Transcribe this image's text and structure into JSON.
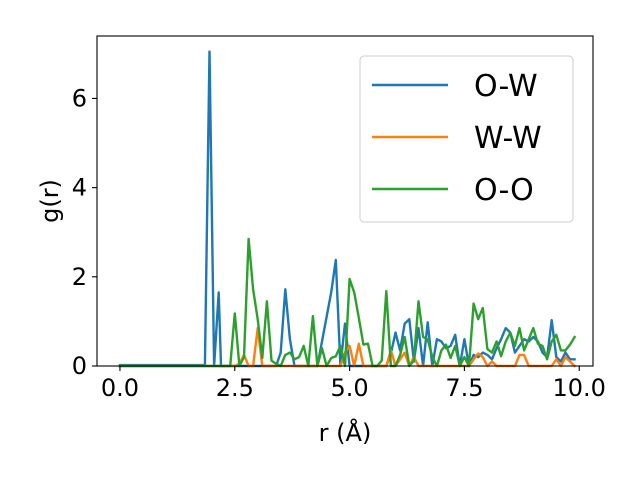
{
  "chart_data": {
    "type": "line",
    "xlabel": "r (Å)",
    "ylabel": "g(r)",
    "xlim": [
      -0.5,
      10.3
    ],
    "ylim": [
      0,
      7.4
    ],
    "xticks": [
      0.0,
      2.5,
      5.0,
      7.5,
      10.0
    ],
    "xtick_labels": [
      "0.0",
      "2.5",
      "5.0",
      "7.5",
      "10.0"
    ],
    "yticks": [
      0,
      2,
      4,
      6
    ],
    "ytick_labels": [
      "0",
      "2",
      "4",
      "6"
    ],
    "grid": false,
    "legend_position": "top-right",
    "series": [
      {
        "name": "O-W",
        "color": "#1f77b4",
        "x": [
          0.0,
          1.8,
          1.85,
          1.95,
          2.05,
          2.15,
          2.2,
          3.4,
          3.5,
          3.6,
          3.7,
          3.8,
          4.1,
          4.3,
          4.5,
          4.6,
          4.7,
          4.8,
          4.9,
          5.0,
          5.1,
          5.8,
          5.9,
          6.0,
          6.1,
          6.2,
          6.3,
          6.4,
          6.5,
          6.6,
          6.7,
          6.8,
          6.9,
          7.0,
          7.1,
          7.2,
          7.3,
          7.4,
          7.5,
          7.6,
          7.7,
          7.8,
          7.9,
          8.0,
          8.1,
          8.2,
          8.3,
          8.4,
          8.5,
          8.6,
          8.7,
          8.8,
          8.9,
          9.0,
          9.1,
          9.2,
          9.3,
          9.4,
          9.5,
          9.6,
          9.7,
          9.8,
          9.9
        ],
        "values": [
          0.02,
          0.02,
          0.0,
          7.05,
          0.0,
          1.65,
          0.0,
          0.0,
          0.3,
          1.72,
          0.6,
          0.0,
          0.0,
          0.0,
          1.1,
          1.65,
          2.38,
          0.0,
          0.95,
          0.0,
          0.0,
          0.0,
          0.28,
          0.75,
          0.35,
          0.95,
          1.05,
          0.1,
          0.85,
          0.0,
          0.98,
          0.0,
          0.6,
          0.55,
          0.4,
          0.45,
          0.7,
          0.0,
          0.6,
          0.0,
          0.25,
          0.2,
          0.3,
          0.25,
          0.15,
          0.4,
          0.6,
          0.85,
          0.75,
          0.3,
          0.45,
          0.6,
          0.55,
          0.65,
          0.55,
          0.3,
          0.2,
          1.03,
          0.2,
          0.1,
          0.3,
          0.15,
          0.15
        ]
      },
      {
        "name": "W-W",
        "color": "#ff7f0e",
        "x": [
          0.0,
          2.5,
          2.6,
          2.7,
          2.8,
          2.9,
          3.0,
          3.1,
          3.2,
          4.8,
          4.9,
          5.0,
          5.1,
          5.2,
          5.3,
          5.8,
          5.9,
          6.0,
          6.1,
          6.2,
          6.3,
          6.4,
          6.5,
          6.6,
          7.6,
          7.7,
          7.8,
          7.9,
          8.0,
          8.1,
          8.2,
          8.6,
          8.7,
          8.8,
          8.9,
          9.4,
          9.5,
          9.6,
          9.7,
          9.8,
          9.9
        ],
        "values": [
          0.0,
          0.0,
          0.05,
          0.25,
          0.0,
          0.0,
          0.85,
          0.0,
          0.0,
          0.0,
          0.3,
          0.45,
          0.0,
          0.5,
          0.0,
          0.0,
          0.35,
          0.0,
          0.15,
          0.3,
          0.0,
          0.2,
          0.0,
          0.0,
          0.0,
          0.15,
          0.28,
          0.2,
          0.0,
          0.1,
          0.0,
          0.0,
          0.25,
          0.25,
          0.0,
          0.0,
          0.15,
          0.0,
          0.2,
          0.1,
          0.0
        ]
      },
      {
        "name": "O-O",
        "color": "#2ca02c",
        "x": [
          0.0,
          2.4,
          2.5,
          2.6,
          2.7,
          2.8,
          2.9,
          3.0,
          3.1,
          3.2,
          3.3,
          3.4,
          3.5,
          3.6,
          3.7,
          3.8,
          3.9,
          4.0,
          4.1,
          4.2,
          4.3,
          4.4,
          4.5,
          4.6,
          4.7,
          4.8,
          4.9,
          5.0,
          5.1,
          5.2,
          5.3,
          5.4,
          5.5,
          5.6,
          5.7,
          5.8,
          5.9,
          6.0,
          6.1,
          6.2,
          6.3,
          6.4,
          6.5,
          6.6,
          6.7,
          6.8,
          6.9,
          7.0,
          7.1,
          7.2,
          7.3,
          7.4,
          7.5,
          7.6,
          7.7,
          7.8,
          7.9,
          8.0,
          8.1,
          8.2,
          8.3,
          8.4,
          8.5,
          8.6,
          8.7,
          8.8,
          8.9,
          9.0,
          9.1,
          9.2,
          9.3,
          9.4,
          9.5,
          9.6,
          9.7,
          9.8,
          9.9
        ],
        "values": [
          0.0,
          0.0,
          1.18,
          0.0,
          0.2,
          2.85,
          1.72,
          1.05,
          0.18,
          1.45,
          0.12,
          0.05,
          0.0,
          0.25,
          0.3,
          0.15,
          0.2,
          0.45,
          0.0,
          1.12,
          0.0,
          0.4,
          0.0,
          0.18,
          0.22,
          0.45,
          0.0,
          1.95,
          1.65,
          1.08,
          0.48,
          0.5,
          0.0,
          0.0,
          0.12,
          1.68,
          0.0,
          0.0,
          0.25,
          0.65,
          0.0,
          0.12,
          1.45,
          0.65,
          0.6,
          0.2,
          0.0,
          0.35,
          0.48,
          0.18,
          0.45,
          0.0,
          0.2,
          0.0,
          1.4,
          1.05,
          1.3,
          0.38,
          0.3,
          0.55,
          0.22,
          0.55,
          0.75,
          0.45,
          0.85,
          0.35,
          0.6,
          0.85,
          0.5,
          0.45,
          0.15,
          0.55,
          0.7,
          0.35,
          0.35,
          0.48,
          0.65
        ]
      }
    ]
  }
}
